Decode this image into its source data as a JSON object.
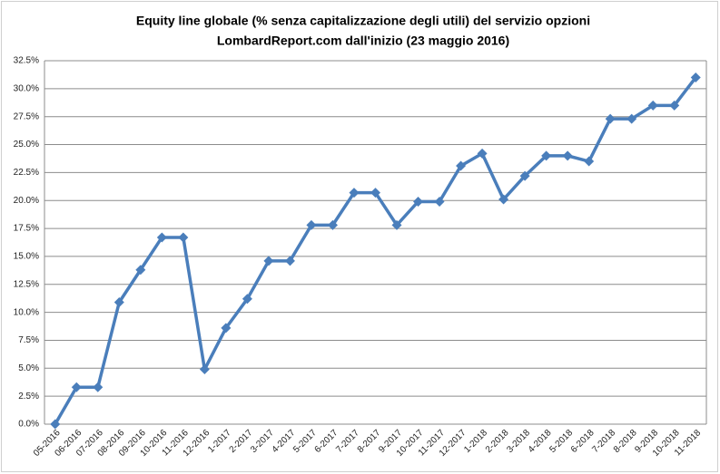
{
  "chart_data": {
    "type": "line",
    "title": [
      "Equity line globale (% senza capitalizzazione degli utili) del servizio opzioni",
      "LombardReport.com dall'inizio (23 maggio 2016)"
    ],
    "categories": [
      "05-2016",
      "06-2016",
      "07-2016",
      "08-2016",
      "09-2016",
      "10-2016",
      "11-2016",
      "12-2016",
      "1-2017",
      "2-2017",
      "3-2017",
      "4-2017",
      "5-2017",
      "6-2017",
      "7-2017",
      "8-2017",
      "9-2017",
      "10-2017",
      "11-2017",
      "12-2017",
      "1-2018",
      "2-2018",
      "3-2018",
      "4-2018",
      "5-2018",
      "6-2018",
      "7-2018",
      "8-2018",
      "9-2018",
      "10-2018",
      "11-2018"
    ],
    "values": [
      0,
      3.3,
      3.3,
      10.9,
      13.8,
      16.7,
      16.7,
      4.9,
      8.6,
      11.2,
      14.6,
      14.6,
      17.8,
      17.8,
      20.7,
      20.7,
      17.8,
      19.9,
      19.9,
      23.1,
      24.2,
      20.1,
      22.2,
      24.0,
      24.0,
      23.5,
      27.3,
      27.3,
      28.5,
      28.5,
      31.0
    ],
    "color": "#4a7ebb",
    "ylim": [
      0,
      32.5
    ],
    "yticks": [
      {
        "value": 0,
        "label": "0.0%"
      },
      {
        "value": 2.5,
        "label": "2.5%"
      },
      {
        "value": 5,
        "label": "5.0%"
      },
      {
        "value": 7.5,
        "label": "7.5%"
      },
      {
        "value": 10,
        "label": "10.0%"
      },
      {
        "value": 12.5,
        "label": "12.5%"
      },
      {
        "value": 15,
        "label": "15.0%"
      },
      {
        "value": 17.5,
        "label": "17.5%"
      },
      {
        "value": 20,
        "label": "20.0%"
      },
      {
        "value": 22.5,
        "label": "22.5%"
      },
      {
        "value": 25,
        "label": "25.0%"
      },
      {
        "value": 27.5,
        "label": "27.5%"
      },
      {
        "value": 30,
        "label": "30.0%"
      },
      {
        "value": 32.5,
        "label": "32.5%"
      }
    ],
    "grid": true
  }
}
